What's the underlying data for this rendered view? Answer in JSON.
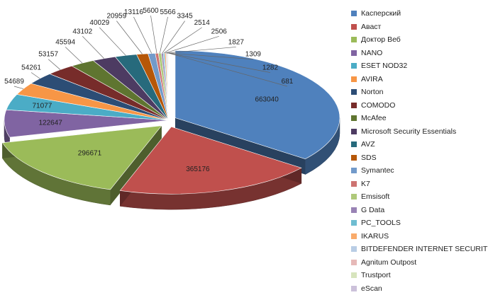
{
  "chart_data": {
    "type": "pie",
    "title": "",
    "legend_position": "right",
    "three_d": true,
    "series": [
      {
        "name": "Касперский",
        "value": 663040,
        "color": "#4F81BD"
      },
      {
        "name": "Аваст",
        "value": 365176,
        "color": "#C0504D"
      },
      {
        "name": "Доктор Веб",
        "value": 296671,
        "color": "#9BBB59"
      },
      {
        "name": "NANO",
        "value": 122647,
        "color": "#8064A2"
      },
      {
        "name": "ESET NOD32",
        "value": 71077,
        "color": "#4BACC6"
      },
      {
        "name": "AVIRA",
        "value": 54689,
        "color": "#F79646"
      },
      {
        "name": "Norton",
        "value": 54261,
        "color": "#2C4D75"
      },
      {
        "name": "COMODO",
        "value": 53157,
        "color": "#772C2A"
      },
      {
        "name": "McAfee",
        "value": 45594,
        "color": "#5F7530"
      },
      {
        "name": "Microsoft Security Essentials",
        "value": 43102,
        "color": "#4D3B62"
      },
      {
        "name": "AVZ",
        "value": 40029,
        "color": "#276A7C"
      },
      {
        "name": "SDS",
        "value": 20959,
        "color": "#B65708"
      },
      {
        "name": "Symantec",
        "value": 13116,
        "color": "#729ACA"
      },
      {
        "name": "K7",
        "value": 5600,
        "color": "#CD7371"
      },
      {
        "name": "Emsisoft",
        "value": 5566,
        "color": "#AFC97A"
      },
      {
        "name": "G Data",
        "value": 3345,
        "color": "#9983B5"
      },
      {
        "name": "PC_TOOLS",
        "value": 2514,
        "color": "#6FBDD1"
      },
      {
        "name": "IKARUS",
        "value": 2506,
        "color": "#F9AB6B"
      },
      {
        "name": "BITDEFENDER INTERNET SECURITY",
        "value": 1827,
        "color": "#B9CDE5"
      },
      {
        "name": "Agnitum Outpost",
        "value": 1309,
        "color": "#E6B9B8"
      },
      {
        "name": "Trustport",
        "value": 1282,
        "color": "#D7E4BD"
      },
      {
        "name": "eScan",
        "value": 681,
        "color": "#CCC1DA"
      }
    ]
  }
}
